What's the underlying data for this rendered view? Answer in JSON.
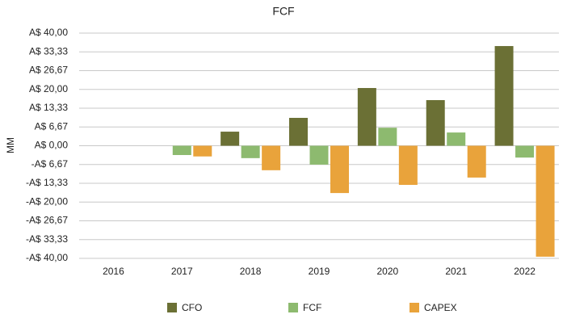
{
  "chart_data": {
    "type": "bar",
    "title": "FCF",
    "y_label": "MM",
    "categories": [
      "2016",
      "2017",
      "2018",
      "2019",
      "2020",
      "2021",
      "2022"
    ],
    "series": [
      {
        "name": "CFO",
        "color": "#6b7035",
        "values": [
          null,
          null,
          5.0,
          9.9,
          20.5,
          16.2,
          35.4
        ]
      },
      {
        "name": "FCF",
        "color": "#8dba6f",
        "values": [
          null,
          -3.3,
          -4.4,
          -6.7,
          6.4,
          4.7,
          -4.2
        ]
      },
      {
        "name": "CAPEX",
        "color": "#e9a33b",
        "values": [
          null,
          -3.8,
          -8.7,
          -16.8,
          -13.9,
          -11.3,
          -39.4
        ]
      }
    ],
    "ylim": [
      -40,
      40
    ],
    "yticks": [
      {
        "value": -40,
        "label": "-A$ 40,00"
      },
      {
        "value": -33.33,
        "label": "-A$ 33,33"
      },
      {
        "value": -26.67,
        "label": "-A$ 26,67"
      },
      {
        "value": -20,
        "label": "-A$ 20,00"
      },
      {
        "value": -13.33,
        "label": "-A$ 13,33"
      },
      {
        "value": -6.67,
        "label": "-A$ 6,67"
      },
      {
        "value": 0,
        "label": "A$ 0,00"
      },
      {
        "value": 6.67,
        "label": "A$ 6,67"
      },
      {
        "value": 13.33,
        "label": "A$ 13,33"
      },
      {
        "value": 20,
        "label": "A$ 20,00"
      },
      {
        "value": 26.67,
        "label": "A$ 26,67"
      },
      {
        "value": 33.33,
        "label": "A$ 33,33"
      },
      {
        "value": 40,
        "label": "A$ 40,00"
      }
    ],
    "grid": true,
    "legend": "bottom"
  }
}
